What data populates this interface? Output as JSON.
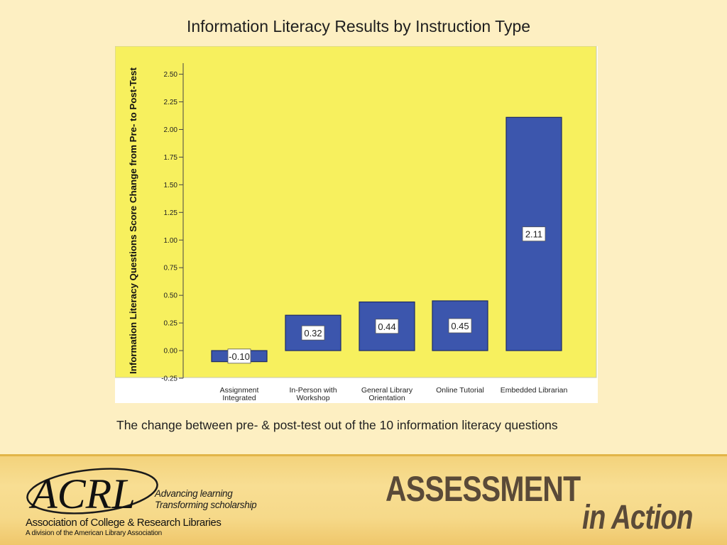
{
  "slide": {
    "title": "Information Literacy Results by Instruction Type",
    "caption": "The change between pre- & post-test out of the 10 information literacy questions"
  },
  "colors": {
    "background": "#fdefc2",
    "plot_area": "#f7f05e",
    "bar_fill": "#3c56ad",
    "bar_stroke": "#1c2a66"
  },
  "chart_data": {
    "type": "bar",
    "title": "",
    "ylabel": "Information Literacy Questions Score Change from Pre- to Post-Test",
    "xlabel": "",
    "categories": [
      [
        "Assignment",
        "Integrated"
      ],
      [
        "In-Person with",
        "Workshop"
      ],
      [
        "General Library",
        "Orientation"
      ],
      [
        "Online Tutorial"
      ],
      [
        "Embedded Librarian"
      ]
    ],
    "values": [
      -0.1,
      0.32,
      0.44,
      0.45,
      2.11
    ],
    "data_labels": [
      "-0.10",
      "0.32",
      "0.44",
      "0.45",
      "2.11"
    ],
    "yticks": [
      "-0.25",
      "0.00",
      "0.25",
      "0.50",
      "0.75",
      "1.00",
      "1.25",
      "1.50",
      "1.75",
      "2.00",
      "2.25",
      "2.50"
    ],
    "ylim": [
      -0.25,
      2.6
    ],
    "grid": false,
    "legend": "none"
  },
  "footer": {
    "logo_text": "ACRL",
    "tagline_1": "Advancing learning",
    "tagline_2": "Transforming scholarship",
    "org_name": "Association of College & Research Libraries",
    "division": "A division of the American Library Association",
    "brand_1": "ASSESSMENT",
    "brand_2": "in Action"
  }
}
